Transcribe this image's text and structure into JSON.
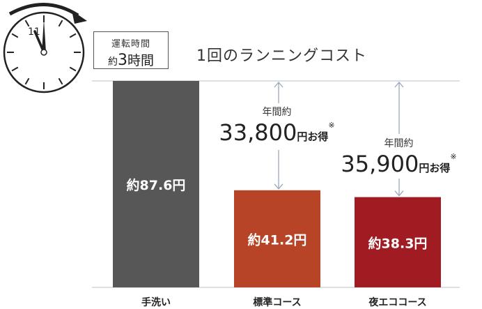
{
  "running_time": {
    "label": "運転時間",
    "prefix": "約",
    "value": "3",
    "suffix": "時間"
  },
  "clock": {
    "number_shown": "11"
  },
  "savings": [
    {
      "label": "年間約",
      "amount": "33,800",
      "unit": "円お得",
      "note": "※"
    },
    {
      "label": "年間約",
      "amount": "35,900",
      "unit": "円お得",
      "note": "※"
    }
  ],
  "colors": {
    "handwash": "#575757",
    "standard": "#b84427",
    "night_eco": "#a01c22",
    "arrow": "#9aa8bd",
    "gridline": "#c6ccd6"
  },
  "chart_data": {
    "type": "bar",
    "title": "1回のランニングコスト",
    "categories": [
      "手洗い",
      "標準コース",
      "夜エココース"
    ],
    "values": [
      87.6,
      41.2,
      38.3
    ],
    "value_labels": [
      "約87.6円",
      "約41.2円",
      "約38.3円"
    ],
    "ylim": [
      0,
      87.6
    ],
    "grid": false
  }
}
